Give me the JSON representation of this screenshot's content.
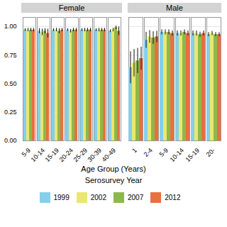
{
  "chart_data": [
    {
      "type": "bar",
      "title": "Female",
      "categories": [
        "5-9",
        "10-14",
        "15-19",
        "20-24",
        "25-29",
        "30-39",
        "40-49"
      ],
      "series": [
        {
          "name": "1999",
          "color": "#87CEEB",
          "values": [
            0.97,
            0.96,
            0.97,
            0.97,
            0.97,
            0.97,
            0.96
          ],
          "errors": [
            0.012,
            0.022,
            0.012,
            0.012,
            0.012,
            0.012,
            0.012
          ]
        },
        {
          "name": "2002",
          "color": "#E8E870",
          "values": [
            0.97,
            0.95,
            0.97,
            0.96,
            0.97,
            0.97,
            0.97
          ],
          "errors": [
            0.015,
            0.028,
            0.015,
            0.015,
            0.015,
            0.015,
            0.015
          ]
        },
        {
          "name": "2007",
          "color": "#8DB84A",
          "values": [
            0.97,
            0.96,
            0.96,
            0.97,
            0.97,
            0.97,
            0.99
          ],
          "errors": [
            0.015,
            0.022,
            0.022,
            0.015,
            0.015,
            0.015,
            0.015
          ]
        },
        {
          "name": "2012",
          "color": "#E87040",
          "values": [
            0.97,
            0.94,
            0.97,
            0.97,
            0.97,
            0.97,
            0.96
          ],
          "errors": [
            0.015,
            0.038,
            0.015,
            0.015,
            0.015,
            0.015,
            0.038
          ]
        }
      ],
      "ylim": [
        0.0,
        1.08
      ],
      "yticks": [
        {
          "value": 0,
          "label": "0.00"
        },
        0.25,
        {
          "value": 0.5,
          "label": "0.50"
        },
        0.75,
        {
          "value": 1,
          "label": "1.00"
        }
      ],
      "grid": true
    },
    {
      "type": "bar",
      "title": "Male",
      "categories": [
        "1",
        "2-4",
        "5-9",
        "10-14",
        "15-19",
        "20-"
      ],
      "series": [
        {
          "name": "1999",
          "color": "#87CEEB",
          "values": [
            0.64,
            0.88,
            0.95,
            0.94,
            0.94,
            0.93
          ],
          "errors": [
            0.14,
            0.07,
            0.022,
            0.022,
            0.022,
            0.018
          ]
        },
        {
          "name": "2002",
          "color": "#E8E870",
          "values": [
            0.68,
            0.91,
            0.95,
            0.94,
            0.94,
            0.94
          ],
          "errors": [
            0.12,
            0.055,
            0.022,
            0.022,
            0.022,
            0.018
          ]
        },
        {
          "name": "2007",
          "color": "#8DB84A",
          "values": [
            0.7,
            0.9,
            0.95,
            0.95,
            0.93,
            0.93
          ],
          "errors": [
            0.11,
            0.055,
            0.022,
            0.022,
            0.022,
            0.018
          ]
        },
        {
          "name": "2012",
          "color": "#E87040",
          "values": [
            0.72,
            0.91,
            0.94,
            0.94,
            0.94,
            0.93
          ],
          "errors": [
            0.1,
            0.05,
            0.022,
            0.022,
            0.022,
            0.018
          ]
        }
      ],
      "ylim": [
        0.0,
        1.08
      ],
      "yticks": [
        {
          "value": 0,
          "label": "0.00"
        },
        0.25,
        {
          "value": 0.5,
          "label": "0.50"
        },
        0.75,
        {
          "value": 1,
          "label": "1.00"
        }
      ],
      "grid": true,
      "tick_labels": "x"
    }
  ],
  "xlabel": "Age Group (Years)",
  "legend_title": "Serosurvey Year",
  "legend": "bottom"
}
